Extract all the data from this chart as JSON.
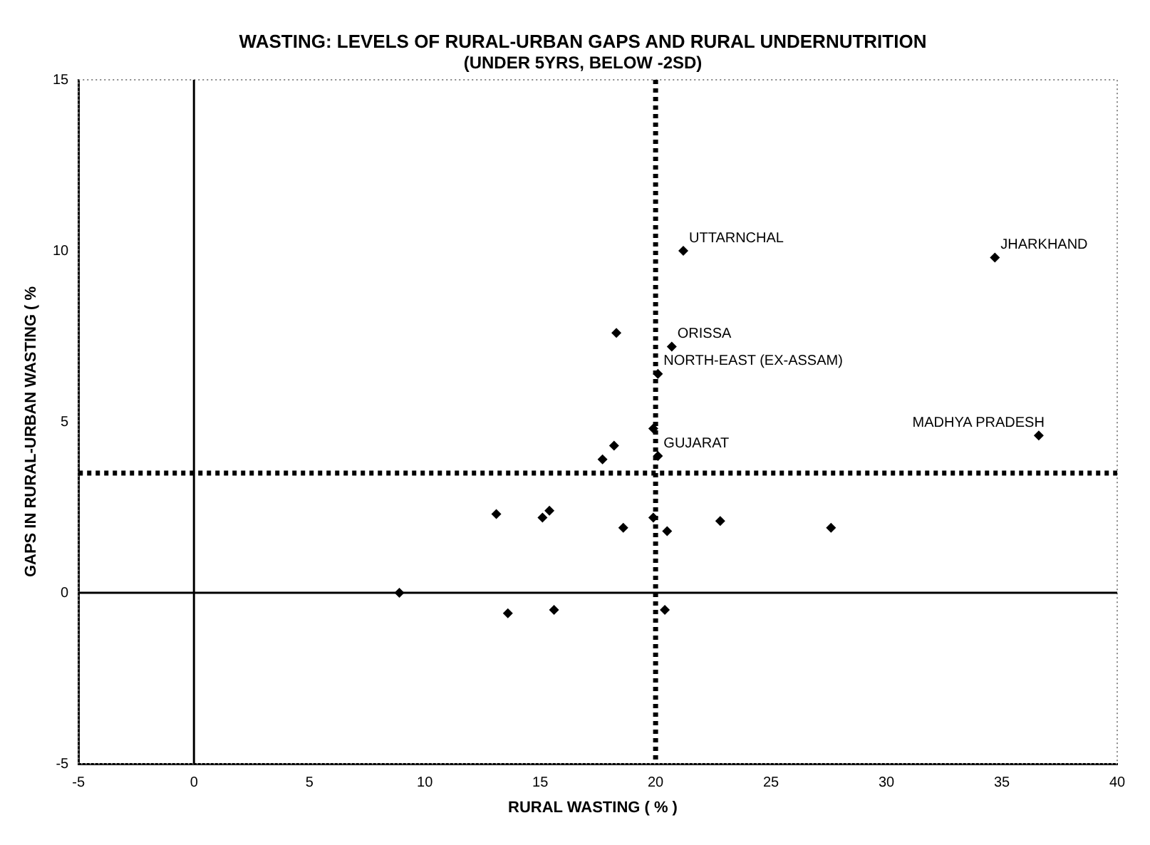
{
  "chart_data": {
    "type": "scatter",
    "title": "WASTING: LEVELS OF RURAL-URBAN GAPS AND RURAL UNDERNUTRITION",
    "subtitle": "(UNDER 5YRS, BELOW -2SD)",
    "xlabel": "RURAL WASTING ( % )",
    "ylabel": "GAPS IN RURAL-URBAN WASTING ( %",
    "series": [
      {
        "color": "#000000",
        "x": [
          21.2,
          34.7,
          18.3,
          20.7,
          20.1,
          19.9,
          20.1,
          18.2,
          17.7,
          36.6,
          18.6,
          19.9,
          20.5,
          22.8,
          27.6,
          13.1,
          15.1,
          15.4,
          8.9,
          13.6,
          15.6,
          20.4
        ],
        "values": [
          10.0,
          9.8,
          7.6,
          7.2,
          6.4,
          4.8,
          4.0,
          4.3,
          3.9,
          4.6,
          1.9,
          2.2,
          1.8,
          2.1,
          1.9,
          2.3,
          2.2,
          2.4,
          0,
          -0.6,
          -0.5,
          -0.5
        ]
      }
    ],
    "xlim": [
      -5,
      40
    ],
    "xticks": [
      -5,
      0,
      5,
      10,
      15,
      20,
      25,
      30,
      35,
      40
    ],
    "ylim": [
      -5,
      15
    ],
    "yticks": [
      -5,
      0,
      5,
      10,
      15
    ],
    "grid": false,
    "legend": false,
    "marker": "diamond",
    "ref_lines": [
      {
        "axis": "x",
        "value": 0,
        "color": "#000000",
        "line_style": "solid"
      },
      {
        "axis": "y",
        "value": 0,
        "color": "#000000",
        "line_style": "solid"
      },
      {
        "axis": "x",
        "value": 20,
        "color": "#000000",
        "line_style": "dotted"
      },
      {
        "axis": "y",
        "value": 3.5,
        "color": "#000000",
        "line_style": "dotted"
      }
    ],
    "annotations": [
      {
        "text": "UTTARNCHAL",
        "x": 21.2,
        "y": 10.0
      },
      {
        "text": "JHARKHAND",
        "x": 34.7,
        "y": 9.8
      },
      {
        "text": "ORISSA",
        "x": 20.7,
        "y": 7.2
      },
      {
        "text": "NORTH-EAST (EX-ASSAM)",
        "x": 20.1,
        "y": 6.4
      },
      {
        "text": "MADHYA PRADESH",
        "x": 36.6,
        "y": 4.6
      },
      {
        "text": "GUJARAT",
        "x": 20.1,
        "y": 4.0
      }
    ]
  }
}
